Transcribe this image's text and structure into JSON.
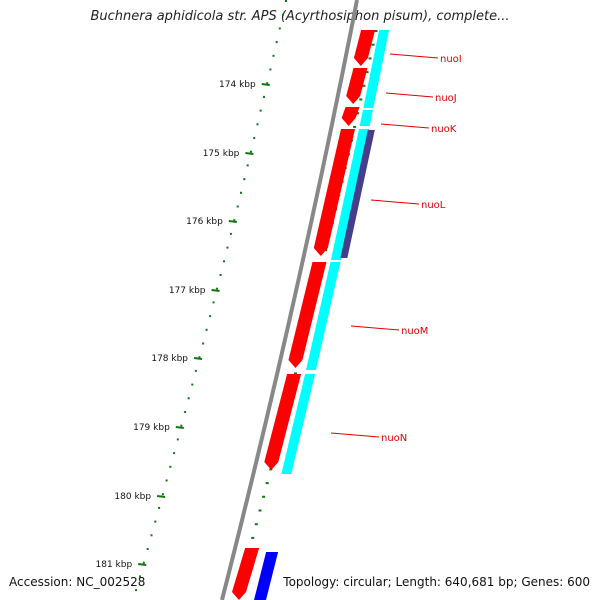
{
  "title": "Buchnera aphidicola str. APS (Acyrthosiphon pisum), complete...",
  "footer": {
    "accession": "Accession: NC_002528",
    "summary": "Topology: circular; Length: 640,681 bp; Genes: 600"
  },
  "colors": {
    "backbone": "#888888",
    "gene_forward": "#ff0000",
    "gene_reverse_track": "#00ffff",
    "gene_other": "#483d8b",
    "gene_blue": "#0000ff",
    "tick": "#117711",
    "label_line": "#e00000"
  },
  "scale": {
    "ticks": [
      "174 kbp",
      "175 kbp",
      "176 kbp",
      "177 kbp",
      "178 kbp",
      "179 kbp",
      "180 kbp",
      "181 kbp"
    ]
  },
  "genes": [
    {
      "name": "nuoI"
    },
    {
      "name": "nuoJ"
    },
    {
      "name": "nuoK"
    },
    {
      "name": "nuoL"
    },
    {
      "name": "nuoM"
    },
    {
      "name": "nuoN"
    }
  ]
}
